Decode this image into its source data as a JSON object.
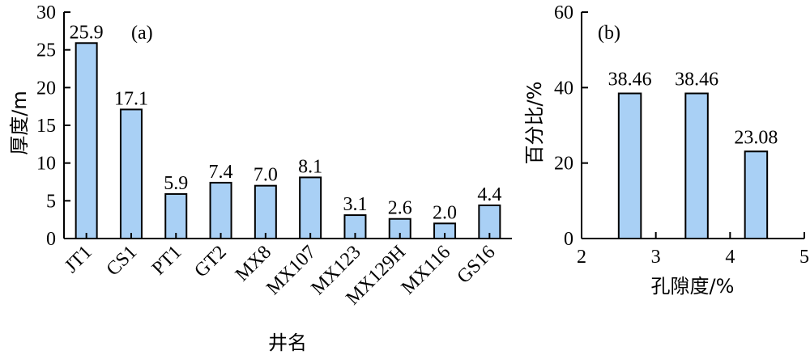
{
  "chart_data": [
    {
      "type": "bar",
      "panel_label": "(a)",
      "xlabel": "井名",
      "ylabel": "厚度/m",
      "ylim": [
        0,
        30
      ],
      "yticks": [
        "0",
        "5",
        "10",
        "15",
        "20",
        "25",
        "30"
      ],
      "categories": [
        "JT1",
        "CS1",
        "PT1",
        "GT2",
        "MX8",
        "MX107",
        "MX123",
        "MX129H",
        "MX116",
        "GS16"
      ],
      "values": [
        25.9,
        17.1,
        5.9,
        7.4,
        7.0,
        8.1,
        3.1,
        2.6,
        2.0,
        4.4
      ],
      "value_labels": [
        "25.9",
        "17.1",
        "5.9",
        "7.4",
        "7.0",
        "8.1",
        "3.1",
        "2.6",
        "2.0",
        "4.4"
      ],
      "bar_color": "#a9d0f5",
      "grid": false
    },
    {
      "type": "bar",
      "panel_label": "(b)",
      "xlabel": "孔隙度/%",
      "ylabel": "百分比/%",
      "xlim": [
        2,
        5
      ],
      "ylim": [
        0,
        60
      ],
      "xticks": [
        "2",
        "3",
        "4",
        "5"
      ],
      "yticks": [
        "0",
        "20",
        "40",
        "60"
      ],
      "bars": [
        {
          "x0": 2.5,
          "x1": 2.8,
          "value": 38.46,
          "label": "38.46"
        },
        {
          "x0": 3.4,
          "x1": 3.7,
          "value": 38.46,
          "label": "38.46"
        },
        {
          "x0": 4.2,
          "x1": 4.5,
          "value": 23.08,
          "label": "23.08"
        }
      ],
      "bar_color": "#a9d0f5",
      "grid": false
    }
  ]
}
